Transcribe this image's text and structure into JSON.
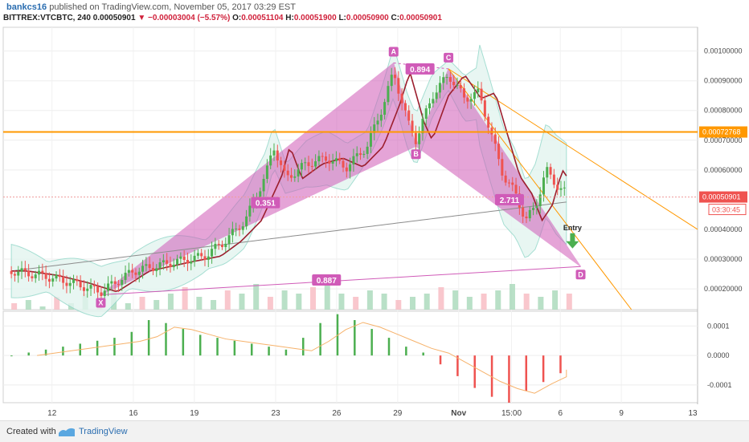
{
  "header": {
    "user": "bankcs16",
    "published": " published on TradingView.com, November 05, 2017 03:29 EST",
    "symbol": "BITTREX:VTCBTC, 240",
    "last": "0.00050901",
    "change": "−0.00003004 (−5.57%)",
    "o_label": "O:",
    "o_value": "0.00051104",
    "h_label": "H:",
    "h_value": "0.00051900",
    "l_label": "L:",
    "l_value": "0.00050900",
    "c_label": "C:",
    "c_value": "0.00050901"
  },
  "footer": {
    "created": "Created with",
    "brand": "TradingView"
  },
  "colors": {
    "up": "#4caf50",
    "down": "#ef5350",
    "pattern": "#d05bb8",
    "hline": "#ff9800",
    "bb": "#8fd6c7",
    "ma_slow": "#8c8c8c",
    "ma_fast": "#9c1f2e"
  },
  "chart_data": [
    {
      "type": "candlestick",
      "x_ticks": [
        "12",
        "16",
        "19",
        "23",
        "26",
        "29",
        "Nov",
        "15:00",
        "6",
        "9",
        "13"
      ],
      "y_ticks": [
        "0.00100000",
        "0.00090000",
        "0.00080000",
        "0.00070000",
        "0.00060000",
        "0.00040000",
        "0.00030000",
        "0.00020000"
      ],
      "ylim": [
        0.00013,
        0.00108
      ],
      "price_tags": [
        {
          "value": 0.00072768,
          "label": "0.00072768",
          "color": "#ff9800"
        },
        {
          "value": 0.00050901,
          "label": "0.00050901",
          "color": "#ef5350"
        }
      ],
      "countdown": "03:30:45",
      "horizontal_line": 0.00072768,
      "harmonic_pattern": {
        "points": [
          {
            "label": "X",
            "date": 14.4,
            "price": 0.00018
          },
          {
            "label": "A",
            "date": 28.8,
            "price": 0.00096
          },
          {
            "label": "B",
            "date": 29.9,
            "price": 0.00068
          },
          {
            "label": "C",
            "date": 31.5,
            "price": 0.00094
          },
          {
            "label": "D",
            "date": 38.0,
            "price": 0.000275
          }
        ],
        "ratios": [
          {
            "label": "0.351",
            "date": 22.5,
            "price": 0.00049
          },
          {
            "label": "0.894",
            "date": 30.1,
            "price": 0.00094
          },
          {
            "label": "2.711",
            "date": 34.5,
            "price": 0.0005
          },
          {
            "label": "0.887",
            "date": 25.5,
            "price": 0.00023
          }
        ]
      },
      "annotation": "Entry",
      "price_path": [
        [
          10.0,
          0.00026
        ],
        [
          11.5,
          0.000245
        ],
        [
          13.0,
          0.00022
        ],
        [
          14.4,
          0.00019
        ],
        [
          16.0,
          0.00026
        ],
        [
          18.0,
          0.00029
        ],
        [
          19.5,
          0.00031
        ],
        [
          20.5,
          0.00036
        ],
        [
          21.5,
          0.00043
        ],
        [
          22.5,
          0.00058
        ],
        [
          22.9,
          0.00068
        ],
        [
          23.5,
          0.00057
        ],
        [
          24.5,
          0.00062
        ],
        [
          25.5,
          0.00064
        ],
        [
          26.5,
          0.00061
        ],
        [
          27.5,
          0.00068
        ],
        [
          28.3,
          0.00082
        ],
        [
          28.8,
          0.00093
        ],
        [
          29.5,
          0.00076
        ],
        [
          29.9,
          0.0007
        ],
        [
          30.7,
          0.00085
        ],
        [
          31.5,
          0.00092
        ],
        [
          32.3,
          0.00084
        ],
        [
          33.0,
          0.00086
        ],
        [
          33.6,
          0.00072
        ],
        [
          34.2,
          0.00058
        ],
        [
          34.8,
          0.00052
        ],
        [
          35.3,
          0.00043
        ],
        [
          35.8,
          0.00048
        ],
        [
          36.3,
          0.0006
        ],
        [
          36.8,
          0.00055
        ],
        [
          37.3,
          0.00052
        ]
      ]
    },
    {
      "type": "bar",
      "name": "volume",
      "values": [
        2,
        3,
        1,
        4,
        2,
        5,
        3,
        6,
        2,
        4,
        3,
        5,
        7,
        4,
        3,
        6,
        5,
        8,
        4,
        6,
        5,
        7,
        9,
        5,
        4,
        6,
        5,
        3,
        4,
        5,
        7,
        6,
        4,
        5,
        6,
        8,
        5,
        4,
        6,
        5
      ]
    },
    {
      "type": "bar",
      "name": "oscillator",
      "y_ticks": [
        "0.0001",
        "0.0000",
        "-0.0001"
      ],
      "ylim": [
        -0.00016,
        0.00015
      ],
      "values": [
        0.0,
        1e-05,
        2e-05,
        3e-05,
        4e-05,
        5e-05,
        6e-05,
        8e-05,
        0.00012,
        0.00011,
        9e-05,
        7e-05,
        6e-05,
        5e-05,
        4e-05,
        3e-05,
        2e-05,
        6e-05,
        0.00011,
        0.00014,
        0.00012,
        9e-05,
        6e-05,
        3e-05,
        1e-05,
        -3e-05,
        -7e-05,
        -0.00011,
        -0.00014,
        -0.00016,
        -0.00012,
        -9e-05,
        -6e-05
      ]
    }
  ]
}
